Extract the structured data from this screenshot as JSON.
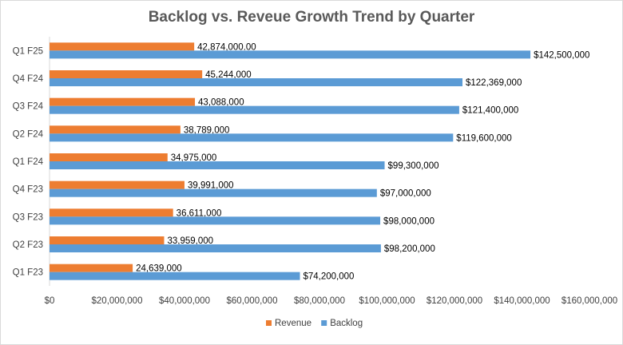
{
  "chart_data": {
    "type": "bar",
    "orientation": "horizontal",
    "title": "Backlog vs. Reveue Growth Trend by Quarter",
    "categories": [
      "Q1 F25",
      "Q4 F24",
      "Q3 F24",
      "Q2 F24",
      "Q1 F24",
      "Q4 F23",
      "Q3 F23",
      "Q2 F23",
      "Q1 F23"
    ],
    "series": [
      {
        "name": "Revenue",
        "color": "#ED7D31",
        "values": [
          42874000,
          45244000,
          43088000,
          38789000,
          34975000,
          39991000,
          36611000,
          33959000,
          24639000
        ],
        "labels": [
          "42,874,000.00",
          "45,244,000",
          "43,088,000",
          "38,789,000",
          "34,975,000",
          "39,991,000",
          "36,611,000",
          "33,959,000",
          "24,639,000"
        ]
      },
      {
        "name": "Backlog",
        "color": "#5B9BD5",
        "values": [
          142500000,
          122369000,
          121400000,
          119600000,
          99300000,
          97000000,
          98000000,
          98200000,
          74200000
        ],
        "labels": [
          "$142,500,000",
          "$122,369,000",
          "$121,400,000",
          "$119,600,000",
          "$99,300,000",
          "$97,000,000",
          "$98,000,000",
          "$98,200,000",
          "$74,200,000"
        ]
      }
    ],
    "xlim": [
      0,
      160000000
    ],
    "x_ticks": [
      0,
      20000000,
      40000000,
      60000000,
      80000000,
      100000000,
      120000000,
      140000000,
      160000000
    ],
    "x_tick_labels": [
      "$0",
      "$20,000,000",
      "$40,000,000",
      "$60,000,000",
      "$80,000,000",
      "$100,000,000",
      "$120,000,000",
      "$140,000,000",
      "$160,000,000"
    ],
    "xlabel": "",
    "ylabel": "",
    "grid": false,
    "legend_position": "bottom"
  }
}
